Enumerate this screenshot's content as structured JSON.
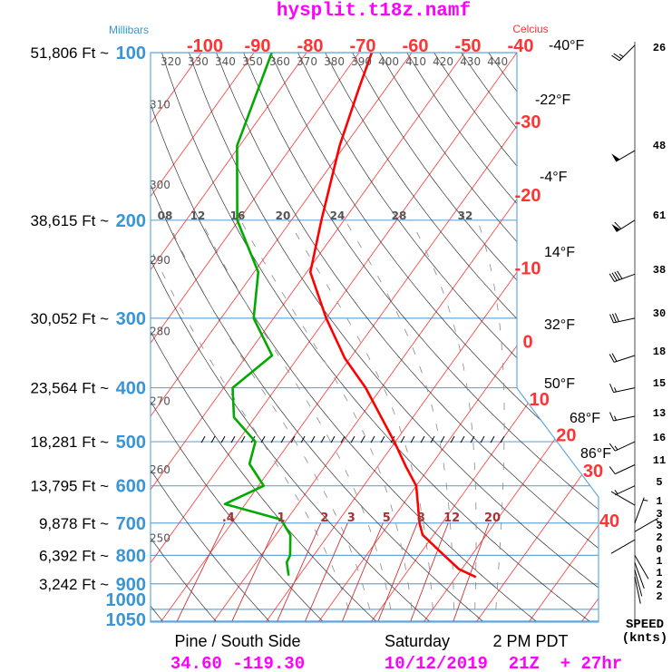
{
  "title": "hysplit.t18z.namf",
  "axis": {
    "pressure_label": "Millibars",
    "temperature_label": "Celcius"
  },
  "colors": {
    "temperature": "#ff0000",
    "dewpoint": "#00aa00",
    "isobar": "#66aadd",
    "isotherm": "#ff3333",
    "dry_adiabat": "#333333",
    "moist_adiabat": "#888888",
    "title": "#ff00ff"
  },
  "chart_data": {
    "type": "skew-t",
    "ylim_mb": [
      1050,
      100
    ],
    "pressure_levels": [
      {
        "p": 100,
        "label": "100",
        "alt": "51,806 Ft ~"
      },
      {
        "p": 200,
        "label": "200",
        "alt": "38,615 Ft ~"
      },
      {
        "p": 300,
        "label": "300",
        "alt": "30,052 Ft ~"
      },
      {
        "p": 400,
        "label": "400",
        "alt": "23,564 Ft ~"
      },
      {
        "p": 500,
        "label": "500",
        "alt": "18,281 Ft ~"
      },
      {
        "p": 600,
        "label": "600",
        "alt": "13,795 Ft ~"
      },
      {
        "p": 700,
        "label": "700",
        "alt": "9,878 Ft ~"
      },
      {
        "p": 800,
        "label": "800",
        "alt": "6,392 Ft ~"
      },
      {
        "p": 900,
        "label": "900",
        "alt": "3,242 Ft ~"
      },
      {
        "p": 1000,
        "label": "1000",
        "alt": ""
      },
      {
        "p": 1050,
        "label": "1050",
        "alt": ""
      }
    ],
    "isotherm_labels_top": [
      "-100",
      "-90",
      "-80",
      "-70",
      "-60",
      "-50",
      "-40"
    ],
    "isotherm_labels_right": [
      "-30",
      "-20",
      "-10",
      "0",
      "10",
      "20",
      "30",
      "40"
    ],
    "fahrenheit_labels": [
      "-40°F",
      "-22°F",
      "-4°F",
      "14°F",
      "32°F",
      "50°F",
      "68°F",
      "86°F"
    ],
    "dry_adiabat_labels_top": [
      "320",
      "330",
      "340",
      "350",
      "360",
      "370",
      "380",
      "390",
      "400",
      "410",
      "420",
      "430",
      "440"
    ],
    "dry_adiabat_labels_left": [
      "310",
      "300",
      "290",
      "280",
      "270",
      "260",
      "250"
    ],
    "moist_adiabat_labels": [
      "08",
      "12",
      "16",
      "20",
      "24",
      "28",
      "32"
    ],
    "mixing_ratio_labels": [
      ".4",
      "1",
      "2",
      "3",
      "5",
      "8",
      "12",
      "20"
    ],
    "temperature": [
      {
        "p": 100,
        "t": -67.6
      },
      {
        "p": 117,
        "t": -65
      },
      {
        "p": 147,
        "t": -61
      },
      {
        "p": 200,
        "t": -54.3
      },
      {
        "p": 248,
        "t": -49.3
      },
      {
        "p": 300,
        "t": -40
      },
      {
        "p": 354,
        "t": -31
      },
      {
        "p": 400,
        "t": -23
      },
      {
        "p": 500,
        "t": -10.2
      },
      {
        "p": 555,
        "t": -4.5
      },
      {
        "p": 600,
        "t": 0
      },
      {
        "p": 700,
        "t": 5.7
      },
      {
        "p": 735,
        "t": 7.9
      },
      {
        "p": 800,
        "t": 14.8
      },
      {
        "p": 847,
        "t": 19.5
      },
      {
        "p": 875,
        "t": 23.8
      }
    ],
    "dewpoint": [
      {
        "p": 100,
        "t": -86.6
      },
      {
        "p": 147,
        "t": -80.5
      },
      {
        "p": 200,
        "t": -70.3
      },
      {
        "p": 248,
        "t": -59.2
      },
      {
        "p": 300,
        "t": -53.8
      },
      {
        "p": 350,
        "t": -45.2
      },
      {
        "p": 400,
        "t": -48.3
      },
      {
        "p": 452,
        "t": -44
      },
      {
        "p": 500,
        "t": -36.6
      },
      {
        "p": 548,
        "t": -34.7
      },
      {
        "p": 600,
        "t": -29
      },
      {
        "p": 647,
        "t": -33.9
      },
      {
        "p": 690,
        "t": -21.1
      },
      {
        "p": 736,
        "t": -17.2
      },
      {
        "p": 800,
        "t": -14.5
      },
      {
        "p": 823,
        "t": -14.2
      },
      {
        "p": 870,
        "t": -12
      }
    ],
    "wind": [
      {
        "p": 97,
        "speed": "26",
        "kt": 26,
        "dir": 225
      },
      {
        "p": 150,
        "speed": "48",
        "kt": 48,
        "dir": 240
      },
      {
        "p": 200,
        "speed": "61",
        "kt": 61,
        "dir": 238
      },
      {
        "p": 250,
        "speed": "38",
        "kt": 38,
        "dir": 250
      },
      {
        "p": 300,
        "speed": "30",
        "kt": 30,
        "dir": 258
      },
      {
        "p": 350,
        "speed": "18",
        "kt": 18,
        "dir": 252
      },
      {
        "p": 400,
        "speed": "15",
        "kt": 15,
        "dir": 258
      },
      {
        "p": 450,
        "speed": "13",
        "kt": 13,
        "dir": 258
      },
      {
        "p": 500,
        "speed": "16",
        "kt": 16,
        "dir": 245
      },
      {
        "p": 550,
        "speed": "11",
        "kt": 11,
        "dir": 245
      },
      {
        "p": 600,
        "speed": "5",
        "kt": 5,
        "dir": 245
      },
      {
        "p": 650,
        "speed": "1",
        "kt": 1,
        "dir": 300
      },
      {
        "p": 700,
        "speed": "3",
        "kt": 3,
        "dir": 20
      },
      {
        "p": 725,
        "speed": "3",
        "kt": 3,
        "dir": 60
      },
      {
        "p": 750,
        "speed": "2",
        "kt": 2,
        "dir": 240
      },
      {
        "p": 775,
        "speed": "0",
        "kt": 0,
        "dir": 0
      },
      {
        "p": 800,
        "speed": "1",
        "kt": 1,
        "dir": 150
      },
      {
        "p": 825,
        "speed": "1",
        "kt": 1,
        "dir": 160
      },
      {
        "p": 850,
        "speed": "2",
        "kt": 2,
        "dir": 165
      },
      {
        "p": 875,
        "speed": "2",
        "kt": 2,
        "dir": 168
      }
    ]
  },
  "wind_header": {
    "line1": "SPEED",
    "line2": "(knts)"
  },
  "footer": {
    "location": "Pine / South Side",
    "day": "Saturday",
    "time": "2 PM PDT",
    "coords": "34.60 -119.30",
    "run": "10/12/2019  21Z  + 27hr"
  }
}
